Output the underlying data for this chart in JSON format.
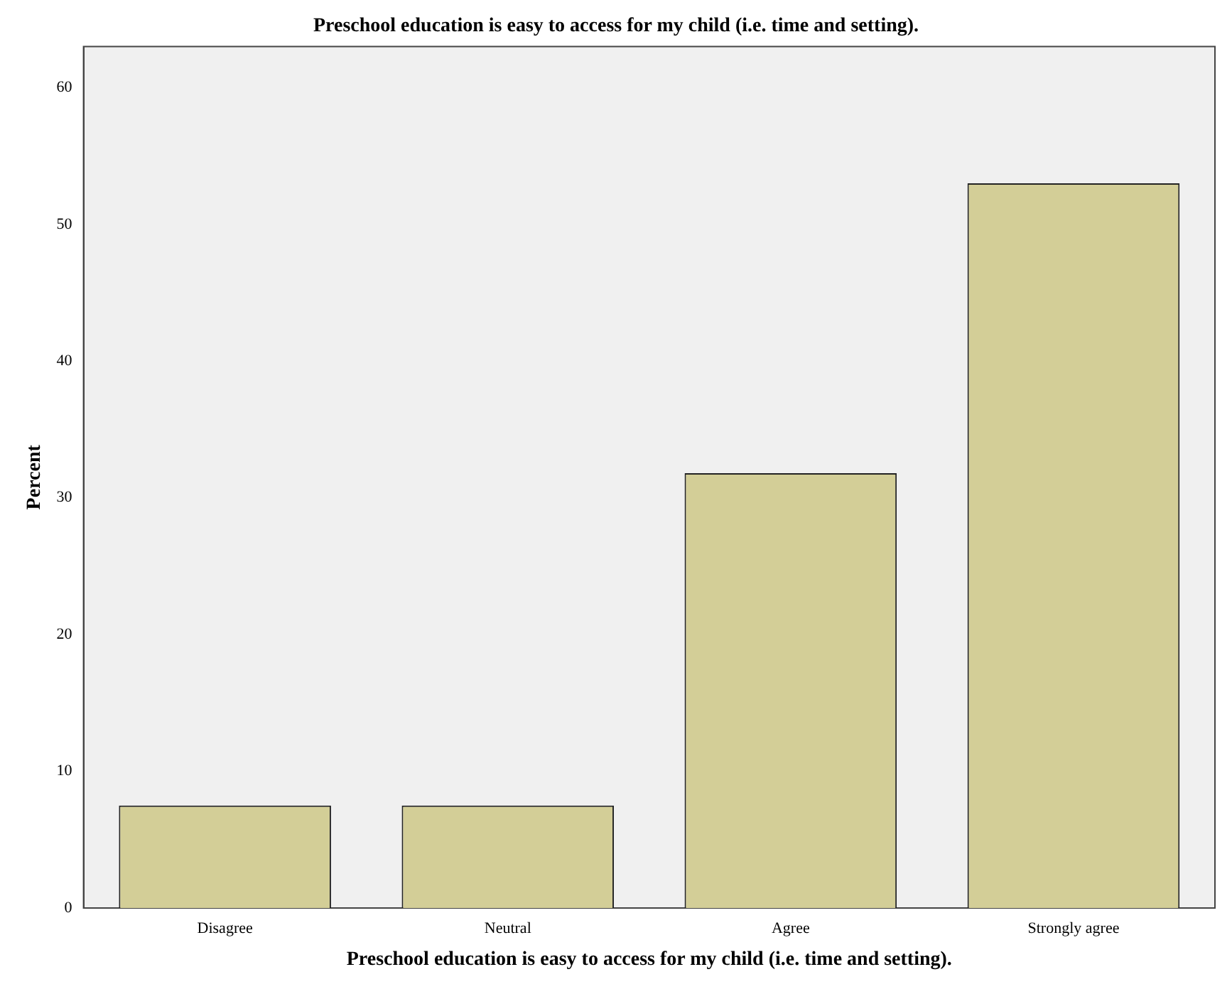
{
  "chart_data": {
    "type": "bar",
    "title": "Preschool education is easy to access for my child (i.e. time and setting).",
    "xlabel": "Preschool education is easy to access for my child (i.e. time and setting).",
    "ylabel": "Percent",
    "categories": [
      "Disagree",
      "Neutral",
      "Agree",
      "Strongly agree"
    ],
    "values": [
      7.5,
      7.5,
      31.8,
      53.0
    ],
    "color": "#d3ce97",
    "ylim": [
      0,
      63
    ],
    "yticks": [
      0,
      10,
      20,
      30,
      40,
      50,
      60
    ],
    "grid": false,
    "legend": false
  }
}
